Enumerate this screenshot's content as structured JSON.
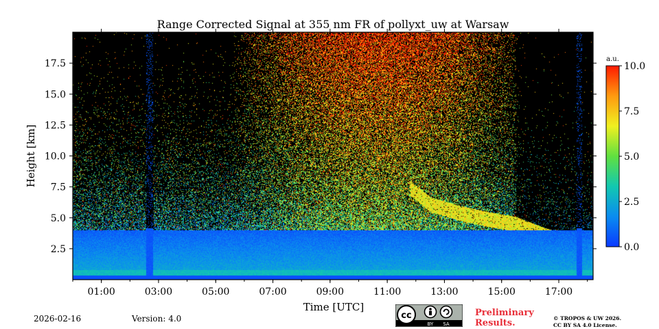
{
  "chart_data": {
    "type": "heatmap",
    "title": "Range Corrected Signal at 355 nm FR of pollyxt_uw at Warsaw",
    "xlabel": "Time [UTC]",
    "ylabel": "Height [km]",
    "xlim": [
      0,
      18.2
    ],
    "ylim": [
      0,
      20
    ],
    "x_ticks": [
      {
        "value": 1,
        "label": "01:00"
      },
      {
        "value": 3,
        "label": "03:00"
      },
      {
        "value": 5,
        "label": "05:00"
      },
      {
        "value": 7,
        "label": "07:00"
      },
      {
        "value": 9,
        "label": "09:00"
      },
      {
        "value": 11,
        "label": "11:00"
      },
      {
        "value": 13,
        "label": "13:00"
      },
      {
        "value": 15,
        "label": "15:00"
      },
      {
        "value": 17,
        "label": "17:00"
      }
    ],
    "y_ticks": [
      {
        "value": 2.5,
        "label": "2.5"
      },
      {
        "value": 5.0,
        "label": "5.0"
      },
      {
        "value": 7.5,
        "label": "7.5"
      },
      {
        "value": 10.0,
        "label": "10.0"
      },
      {
        "value": 12.5,
        "label": "12.5"
      },
      {
        "value": 15.0,
        "label": "15.0"
      },
      {
        "value": 17.5,
        "label": "17.5"
      }
    ],
    "colorbar": {
      "label": "a.u.",
      "range": [
        0,
        10
      ],
      "ticks": [
        {
          "value": 0,
          "label": "0.0"
        },
        {
          "value": 2.5,
          "label": "2.5"
        },
        {
          "value": 5,
          "label": "5.0"
        },
        {
          "value": 7.5,
          "label": "7.5"
        },
        {
          "value": 10,
          "label": "10.0"
        }
      ],
      "colors": [
        "#0a3aff",
        "#0a8cf0",
        "#12c8b0",
        "#60e040",
        "#f0f020",
        "#ff9a10",
        "#ff1a00"
      ]
    },
    "features": {
      "boundary_layer_top_km": 4.0,
      "data_gaps_utc": [
        [
          2.55,
          2.8
        ],
        [
          17.6,
          17.8
        ]
      ],
      "descending_layer": {
        "times_utc": [
          11.8,
          12.5,
          13.5,
          14.5,
          15.5,
          16.5,
          17.5,
          18.2
        ],
        "heights_km": [
          7.4,
          6.1,
          5.4,
          4.9,
          4.5,
          3.6,
          2.9,
          3.2
        ]
      }
    }
  },
  "footer": {
    "date": "2026-02-16",
    "version": "Version: 4.0",
    "preliminary_line1": "Preliminary",
    "preliminary_line2": "Results.",
    "copyright_line1": "© TROPOS & UW 2026.",
    "copyright_line2": "CC BY SA 4.0 License.",
    "license_badge": [
      "BY",
      "SA"
    ]
  }
}
